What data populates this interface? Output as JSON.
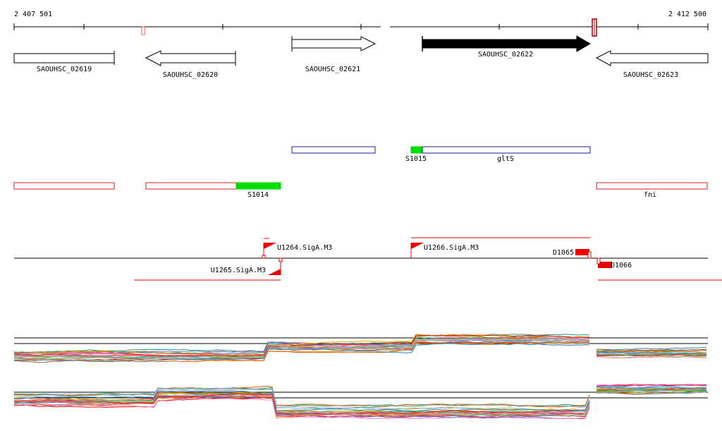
{
  "coords": {
    "start": "2 407 501",
    "end": "2 412 500"
  },
  "genes": [
    {
      "label": "SAOUHSC_02619",
      "strand": "+",
      "filled": false
    },
    {
      "label": "SAOUHSC_02620",
      "strand": "-",
      "filled": false
    },
    {
      "label": "SAOUHSC_02621",
      "strand": "+",
      "filled": false
    },
    {
      "label": "SAOUHSC_02622",
      "strand": "+",
      "filled": true
    },
    {
      "label": "SAOUHSC_02623",
      "strand": "-",
      "filled": false
    }
  ],
  "annotations": {
    "row1": [
      {
        "label": "S1015"
      },
      {
        "label": "gltS"
      }
    ],
    "row2": [
      {
        "label": "S1014"
      },
      {
        "label": "fni"
      }
    ]
  },
  "promoters": [
    {
      "label": "U1264.SigA.M3",
      "strand": "+"
    },
    {
      "label": "U1265.SigA.M3",
      "strand": "-"
    },
    {
      "label": "U1266.SigA.M3",
      "strand": "+"
    }
  ],
  "terminators": [
    {
      "label": "D1065",
      "strand": "+"
    },
    {
      "label": "D1066",
      "strand": "-"
    }
  ],
  "colors": {
    "axis": "#000000",
    "gene_outline": "#000000",
    "gene_filled": "#000000",
    "feature_blue": "#1a1aa6",
    "feature_red": "#d42020",
    "feature_green": "#00dd00",
    "signal_red": "#ee0000",
    "expression_palette": [
      "#e41a1c",
      "#377eb8",
      "#4daf4a",
      "#984ea3",
      "#ff7f00",
      "#a65628",
      "#f781bf",
      "#999999",
      "#66c2a5",
      "#1b9e77",
      "#d95f02",
      "#7570b3",
      "#e7298a",
      "#66a61e",
      "#e6ab02",
      "#a6761d",
      "#8dd3c7",
      "#bebada",
      "#fb8072",
      "#80b1d3"
    ]
  }
}
